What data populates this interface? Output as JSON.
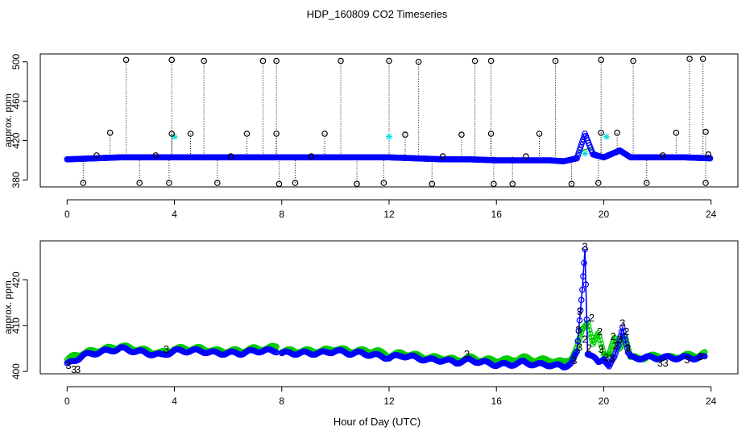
{
  "title": "HDP_160809  CO2 Timeseries",
  "xlabel": "Hour of Day (UTC)",
  "colors": {
    "black": "#000000",
    "blue": "#0000ff",
    "cyan": "#00dddd",
    "green": "#00cc00"
  },
  "chart_data": [
    {
      "type": "scatter",
      "panel": "top",
      "ylabel": "approx. ppm",
      "xlim": [
        -1,
        25
      ],
      "ylim": [
        373,
        508
      ],
      "xticks": [
        0,
        4,
        8,
        12,
        16,
        20,
        24
      ],
      "yticks": [
        380,
        420,
        460,
        500
      ],
      "grid": false,
      "series": [
        {
          "marker": "circle",
          "color": "black",
          "role": "all values, dotted vertical lines to baseline",
          "points": [
            [
              0.6,
              377
            ],
            [
              2.2,
              502
            ],
            [
              2.7,
              377
            ],
            [
              3.8,
              377
            ],
            [
              3.9,
              502
            ],
            [
              5.1,
              501
            ],
            [
              5.6,
              377
            ],
            [
              7.3,
              501
            ],
            [
              7.8,
              501
            ],
            [
              7.9,
              376
            ],
            [
              8.5,
              377
            ],
            [
              10.2,
              501
            ],
            [
              10.8,
              376
            ],
            [
              11.8,
              377
            ],
            [
              12.0,
              501
            ],
            [
              13.1,
              500
            ],
            [
              13.6,
              376
            ],
            [
              15.2,
              501
            ],
            [
              15.8,
              501
            ],
            [
              15.9,
              376
            ],
            [
              16.6,
              376
            ],
            [
              18.2,
              501
            ],
            [
              18.8,
              376
            ],
            [
              19.8,
              377
            ],
            [
              19.9,
              502
            ],
            [
              21.1,
              501
            ],
            [
              21.6,
              377
            ],
            [
              23.2,
              503
            ],
            [
              23.7,
              503
            ],
            [
              23.8,
              377
            ],
            [
              1.6,
              428
            ],
            [
              3.9,
              427
            ],
            [
              4.6,
              427
            ],
            [
              6.7,
              427
            ],
            [
              7.8,
              427
            ],
            [
              9.6,
              427
            ],
            [
              12.6,
              426
            ],
            [
              14.7,
              426
            ],
            [
              15.8,
              427
            ],
            [
              17.6,
              427
            ],
            [
              19.9,
              428
            ],
            [
              20.5,
              428
            ],
            [
              22.7,
              428
            ],
            [
              23.8,
              429
            ],
            [
              1.1,
              405
            ],
            [
              3.3,
              405
            ],
            [
              6.1,
              404
            ],
            [
              9.1,
              404
            ],
            [
              14.0,
              404
            ],
            [
              17.1,
              404
            ],
            [
              22.2,
              405
            ],
            [
              23.9,
              406
            ]
          ]
        },
        {
          "marker": "circle",
          "color": "blue",
          "role": "main trace",
          "x": [
            0.0,
            1.0,
            2.0,
            3.0,
            4.0,
            5.0,
            6.0,
            7.0,
            8.0,
            9.0,
            10.0,
            11.0,
            12.0,
            13.0,
            14.0,
            15.0,
            16.0,
            17.0,
            18.0,
            18.5,
            19.0,
            19.3,
            19.6,
            20.0,
            20.6,
            21.0,
            22.0,
            23.0,
            24.0
          ],
          "y": [
            401,
            402,
            403,
            403,
            403,
            403,
            403,
            403,
            403,
            403,
            403,
            403,
            403,
            402,
            401,
            401,
            400,
            400,
            400,
            399,
            402,
            427,
            406,
            403,
            410,
            403,
            403,
            403,
            402
          ]
        },
        {
          "marker": "asterisk",
          "color": "cyan",
          "role": "flagged points",
          "points": [
            [
              4.0,
              424
            ],
            [
              12.0,
              424
            ],
            [
              19.3,
              407
            ],
            [
              20.1,
              424
            ]
          ]
        },
        {
          "marker": "line",
          "color": "green",
          "role": "secondary trace",
          "points": [
            [
              18.9,
              404
            ],
            [
              19.1,
              409
            ],
            [
              19.3,
              411
            ],
            [
              19.5,
              412
            ],
            [
              19.7,
              408
            ],
            [
              19.9,
              406
            ],
            [
              20.1,
              404
            ]
          ]
        }
      ]
    },
    {
      "type": "line",
      "panel": "bottom",
      "ylabel": "approx. ppm",
      "xlim": [
        -1,
        25
      ],
      "ylim": [
        399.5,
        428.5
      ],
      "xticks": [
        0,
        4,
        8,
        12,
        16,
        20,
        24
      ],
      "yticks": [
        400,
        410,
        420
      ],
      "grid": false,
      "gaps": [
        [
          4.0,
          4.05
        ],
        [
          7.8,
          8.0
        ],
        [
          11.9,
          12.0
        ],
        [
          15.95,
          16.0
        ]
      ],
      "series": [
        {
          "marker": "circle",
          "color": "green",
          "x": [
            0.0,
            0.3,
            0.6,
            1.0,
            1.5,
            2.0,
            2.5,
            3.0,
            3.5,
            4.0,
            4.5,
            5.0,
            5.5,
            6.0,
            6.5,
            7.0,
            7.5,
            7.8,
            8.0,
            8.5,
            9.0,
            9.5,
            10.0,
            10.5,
            11.0,
            11.5,
            12.0,
            12.5,
            13.0,
            13.5,
            14.0,
            14.5,
            15.0,
            15.5,
            16.0,
            16.5,
            17.0,
            17.5,
            18.0,
            18.5,
            18.8,
            19.0,
            19.2,
            19.4,
            19.6,
            19.8,
            20.0,
            20.2,
            20.4,
            20.6,
            20.8,
            21.0,
            21.5,
            22.0,
            22.5,
            23.0,
            23.5,
            23.8
          ],
          "y": [
            402.5,
            403.5,
            404.0,
            404.5,
            405.0,
            405.5,
            405.0,
            404.5,
            404.0,
            405.0,
            405.0,
            405.0,
            404.5,
            404.5,
            404.5,
            405.0,
            405.0,
            405.5,
            404.5,
            404.5,
            404.5,
            404.5,
            405.0,
            404.5,
            404.5,
            404.5,
            403.5,
            404.0,
            403.5,
            403.0,
            403.0,
            402.5,
            403.0,
            402.5,
            402.5,
            402.5,
            403.0,
            402.5,
            402.5,
            402.0,
            403.0,
            405.0,
            409.0,
            411.0,
            406.0,
            408.0,
            404.0,
            404.0,
            407.0,
            405.0,
            408.0,
            403.0,
            403.0,
            403.5,
            403.0,
            403.5,
            403.5,
            404.0
          ]
        },
        {
          "marker": "circle",
          "color": "blue",
          "x": [
            0.0,
            0.3,
            0.6,
            1.0,
            1.5,
            2.0,
            2.5,
            3.0,
            3.5,
            4.0,
            4.5,
            5.0,
            5.5,
            6.0,
            6.5,
            7.0,
            7.5,
            7.8,
            8.0,
            8.5,
            9.0,
            9.5,
            10.0,
            10.5,
            11.0,
            11.5,
            12.0,
            12.5,
            13.0,
            13.5,
            14.0,
            14.5,
            15.0,
            15.5,
            16.0,
            16.5,
            17.0,
            17.5,
            18.0,
            18.5,
            18.8,
            19.0,
            19.1,
            19.2,
            19.3,
            19.4,
            19.6,
            19.8,
            20.0,
            20.2,
            20.4,
            20.55,
            20.7,
            20.9,
            21.0,
            21.5,
            22.0,
            22.5,
            23.0,
            23.5,
            23.8
          ],
          "y": [
            401.5,
            402.5,
            403.5,
            404.0,
            404.5,
            405.0,
            404.5,
            404.0,
            403.5,
            404.5,
            404.5,
            404.5,
            404.0,
            404.0,
            404.0,
            404.5,
            404.5,
            404.5,
            404.0,
            404.0,
            404.0,
            404.0,
            404.5,
            404.0,
            404.0,
            403.5,
            403.0,
            403.5,
            403.0,
            402.5,
            402.5,
            402.0,
            402.5,
            402.0,
            401.5,
            401.5,
            402.0,
            401.5,
            401.5,
            401.0,
            402.0,
            404.0,
            411.0,
            418.0,
            427.0,
            404.0,
            403.0,
            402.0,
            403.0,
            401.0,
            403.0,
            406.0,
            410.0,
            404.0,
            403.0,
            403.0,
            403.0,
            403.0,
            403.0,
            403.0,
            403.0
          ]
        }
      ],
      "annotations": [
        {
          "text": "3",
          "color": "blue",
          "x": 0.05,
          "y": 401.3
        },
        {
          "text": "3",
          "color": "blue",
          "x": 0.25,
          "y": 400.4
        },
        {
          "text": "3",
          "color": "blue",
          "x": 0.4,
          "y": 400.4
        },
        {
          "text": "3",
          "color": "blue",
          "x": 3.7,
          "y": 404.8
        },
        {
          "text": "3",
          "color": "blue",
          "x": 14.9,
          "y": 403.7
        },
        {
          "text": "3",
          "color": "blue",
          "x": 19.3,
          "y": 427.2
        },
        {
          "text": "3",
          "color": "blue",
          "x": 19.1,
          "y": 413.0
        },
        {
          "text": "3",
          "color": "blue",
          "x": 19.05,
          "y": 409.0
        },
        {
          "text": "3",
          "color": "blue",
          "x": 19.1,
          "y": 405.2
        },
        {
          "text": "3",
          "color": "blue",
          "x": 19.9,
          "y": 404.8
        },
        {
          "text": "3",
          "color": "blue",
          "x": 20.7,
          "y": 410.5
        },
        {
          "text": "3",
          "color": "blue",
          "x": 20.6,
          "y": 407.0
        },
        {
          "text": "3",
          "color": "blue",
          "x": 20.9,
          "y": 405.0
        },
        {
          "text": "3",
          "color": "blue",
          "x": 20.3,
          "y": 402.8
        },
        {
          "text": "3",
          "color": "blue",
          "x": 22.1,
          "y": 401.8
        },
        {
          "text": "3",
          "color": "blue",
          "x": 22.3,
          "y": 401.8
        },
        {
          "text": "3",
          "color": "blue",
          "x": 23.1,
          "y": 402.5
        },
        {
          "text": "3",
          "color": "blue",
          "x": 23.6,
          "y": 403.2
        },
        {
          "text": "3",
          "color": "blue",
          "x": 18.9,
          "y": 402.3
        },
        {
          "text": "3",
          "color": "blue",
          "x": 20.1,
          "y": 403.0
        },
        {
          "text": "2",
          "color": "green",
          "x": 19.55,
          "y": 411.6
        },
        {
          "text": "2",
          "color": "green",
          "x": 19.85,
          "y": 408.6
        },
        {
          "text": "2",
          "color": "green",
          "x": 20.35,
          "y": 407.6
        },
        {
          "text": "2",
          "color": "green",
          "x": 20.85,
          "y": 408.6
        },
        {
          "text": "2",
          "color": "green",
          "x": 19.3,
          "y": 407.0
        },
        {
          "text": "2",
          "color": "green",
          "x": 19.45,
          "y": 405.0
        },
        {
          "text": "2",
          "color": "green",
          "x": 20.45,
          "y": 405.6
        }
      ]
    }
  ]
}
